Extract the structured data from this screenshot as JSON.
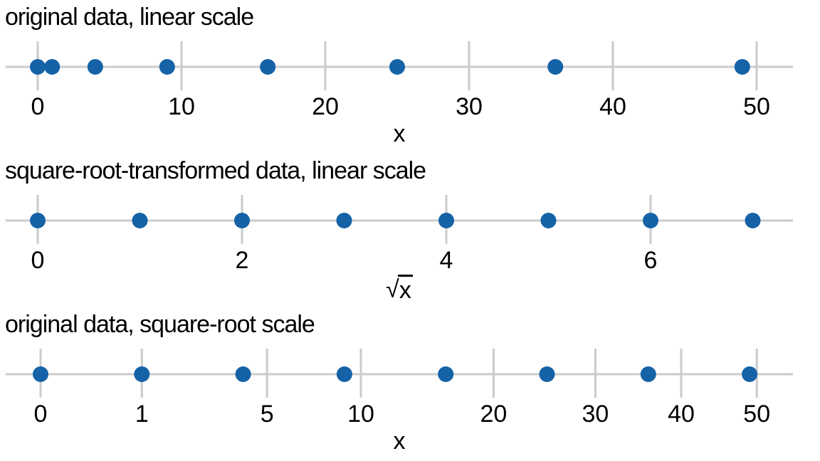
{
  "figure": {
    "background": "#ffffff",
    "colors": {
      "point_fill": "#1562A7",
      "axis_line": "#cbcbcb",
      "text": "#000000"
    }
  },
  "chart_data": [
    {
      "type": "scatter",
      "title": "original data, linear scale",
      "xlabel": "x",
      "scale": "linear",
      "points": [
        0,
        1,
        4,
        9,
        16,
        25,
        36,
        49
      ],
      "ticks": [
        0,
        10,
        20,
        30,
        40,
        50
      ],
      "xlim": [
        -2.5,
        52.5
      ],
      "grid": false,
      "legend": false
    },
    {
      "type": "scatter",
      "title": "square-root-transformed data, linear scale",
      "xlabel": "√x",
      "scale": "linear",
      "points": [
        0,
        1,
        2,
        3,
        4,
        5,
        6,
        7
      ],
      "ticks": [
        0,
        2,
        4,
        6
      ],
      "xlim": [
        -0.35,
        7.4
      ],
      "grid": false,
      "legend": false
    },
    {
      "type": "scatter",
      "title": "original data, square-root scale",
      "xlabel": "x",
      "scale": "sqrt",
      "points": [
        0,
        1,
        4,
        9,
        16,
        25,
        36,
        49
      ],
      "ticks": [
        0,
        1,
        5,
        10,
        20,
        30,
        40,
        50
      ],
      "xlim": [
        0,
        55.5
      ],
      "grid": false,
      "legend": false
    }
  ]
}
